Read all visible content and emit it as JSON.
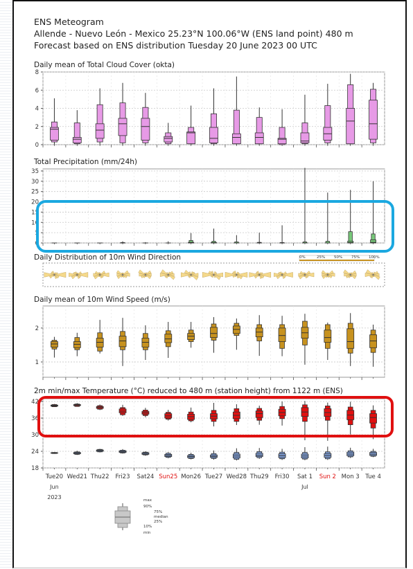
{
  "header": {
    "title": "ENS Meteogram",
    "location": "Allende - Nuevo León - Mexico 25.23°N 100.06°W (ENS land point) 480 m",
    "forecast": "Forecast based on ENS distribution Tuesday 20 June 2023 00 UTC"
  },
  "colors": {
    "cloud": "#e79ae6",
    "precip": "#78c87a",
    "wind_dir": "#f5d98b",
    "wind_speed": "#c7921f",
    "tmax": "#e01010",
    "tmin": "#7f9fd9",
    "highlight_blue": "#1ba8e0",
    "highlight_red": "#e01010"
  },
  "x_axis": {
    "days": [
      "Tue20",
      "Wed21",
      "Thu22",
      "Fri23",
      "Sat24",
      "Sun25",
      "Mon26",
      "Tue27",
      "Wed28",
      "Thu29",
      "Fri30",
      "Sat 1",
      "Sun 2",
      "Mon 3",
      "Tue 4"
    ],
    "red_days": [
      "Sun25",
      "Sun 2"
    ],
    "month_labels": [
      {
        "day_index": 0,
        "text": "Jun"
      },
      {
        "day_index": 11,
        "text": "Jul"
      }
    ],
    "year_label": "2023"
  },
  "chart_data": [
    {
      "type": "boxplot",
      "id": "cloud",
      "title": "Daily mean of Total Cloud Cover (okta)",
      "ylim": [
        0,
        8
      ],
      "yticks": [
        0,
        2,
        4,
        6,
        8
      ],
      "boxes": [
        {
          "min": 0.0,
          "p10": 0.3,
          "p25": 0.5,
          "median": 1.7,
          "p75": 1.9,
          "p90": 2.5,
          "max": 5.1
        },
        {
          "min": 0.0,
          "p10": 0.1,
          "p25": 0.2,
          "median": 0.6,
          "p75": 0.8,
          "p90": 2.4,
          "max": 3.8
        },
        {
          "min": 0.0,
          "p10": 0.3,
          "p25": 0.7,
          "median": 1.6,
          "p75": 2.3,
          "p90": 4.4,
          "max": 6.2
        },
        {
          "min": 0.0,
          "p10": 0.2,
          "p25": 1.0,
          "median": 2.3,
          "p75": 2.9,
          "p90": 4.6,
          "max": 6.8
        },
        {
          "min": 0.0,
          "p10": 0.2,
          "p25": 0.5,
          "median": 2.0,
          "p75": 2.9,
          "p90": 4.1,
          "max": 5.7
        },
        {
          "min": 0.0,
          "p10": 0.1,
          "p25": 0.3,
          "median": 0.7,
          "p75": 0.9,
          "p90": 1.3,
          "max": 2.4
        },
        {
          "min": 0.0,
          "p10": 0.1,
          "p25": 0.1,
          "median": 1.3,
          "p75": 1.4,
          "p90": 1.9,
          "max": 4.3
        },
        {
          "min": 0.0,
          "p10": 0.1,
          "p25": 0.2,
          "median": 0.7,
          "p75": 1.9,
          "p90": 3.4,
          "max": 6.2
        },
        {
          "min": 0.0,
          "p10": 0.1,
          "p25": 0.1,
          "median": 0.8,
          "p75": 1.2,
          "p90": 3.8,
          "max": 7.5
        },
        {
          "min": 0.0,
          "p10": 0.1,
          "p25": 0.1,
          "median": 0.8,
          "p75": 1.3,
          "p90": 3.0,
          "max": 4.1
        },
        {
          "min": 0.0,
          "p10": 0.0,
          "p25": 0.1,
          "median": 0.6,
          "p75": 0.7,
          "p90": 1.9,
          "max": 3.9
        },
        {
          "min": 0.0,
          "p10": 0.1,
          "p25": 0.2,
          "median": 0.4,
          "p75": 1.3,
          "p90": 2.4,
          "max": 5.5
        },
        {
          "min": 0.0,
          "p10": 0.2,
          "p25": 0.5,
          "median": 1.2,
          "p75": 1.9,
          "p90": 4.3,
          "max": 6.7
        },
        {
          "min": 0.0,
          "p10": 0.1,
          "p25": 0.1,
          "median": 2.6,
          "p75": 4.0,
          "p90": 6.6,
          "max": 7.8
        },
        {
          "min": 0.0,
          "p10": 0.2,
          "p25": 0.6,
          "median": 2.3,
          "p75": 4.9,
          "p90": 6.1,
          "max": 6.8
        }
      ]
    },
    {
      "type": "boxplot",
      "id": "precip",
      "title": "Total Precipitation (mm/24h)",
      "ylim": [
        0,
        36
      ],
      "yticks": [
        0,
        5,
        10,
        15,
        20,
        25,
        30,
        35
      ],
      "boxes": [
        {
          "min": 0,
          "p10": 0,
          "p25": 0,
          "median": 0,
          "p75": 0,
          "p90": 0,
          "max": 0
        },
        {
          "min": 0,
          "p10": 0,
          "p25": 0,
          "median": 0,
          "p75": 0,
          "p90": 0,
          "max": 0
        },
        {
          "min": 0,
          "p10": 0,
          "p25": 0,
          "median": 0,
          "p75": 0,
          "p90": 0,
          "max": 0.1
        },
        {
          "min": 0,
          "p10": 0,
          "p25": 0,
          "median": 0,
          "p75": 0,
          "p90": 0.2,
          "max": 0.8
        },
        {
          "min": 0,
          "p10": 0,
          "p25": 0,
          "median": 0,
          "p75": 0,
          "p90": 0,
          "max": 0.4
        },
        {
          "min": 0,
          "p10": 0,
          "p25": 0,
          "median": 0,
          "p75": 0,
          "p90": 0,
          "max": 0.8
        },
        {
          "min": 0,
          "p10": 0,
          "p25": 0,
          "median": 0,
          "p75": 0.3,
          "p90": 1.2,
          "max": 4.8
        },
        {
          "min": 0,
          "p10": 0,
          "p25": 0,
          "median": 0,
          "p75": 0.2,
          "p90": 0.8,
          "max": 7.0
        },
        {
          "min": 0,
          "p10": 0,
          "p25": 0,
          "median": 0,
          "p75": 0.1,
          "p90": 0.5,
          "max": 3.8
        },
        {
          "min": 0,
          "p10": 0,
          "p25": 0,
          "median": 0,
          "p75": 0,
          "p90": 0.3,
          "max": 5.0
        },
        {
          "min": 0,
          "p10": 0,
          "p25": 0,
          "median": 0,
          "p75": 0,
          "p90": 0.2,
          "max": 8.6
        },
        {
          "min": 0,
          "p10": 0,
          "p25": 0,
          "median": 0,
          "p75": 0,
          "p90": 0.5,
          "max": 36.5
        },
        {
          "min": 0,
          "p10": 0,
          "p25": 0,
          "median": 0,
          "p75": 0,
          "p90": 0.8,
          "max": 24.5
        },
        {
          "min": 0,
          "p10": 0,
          "p25": 0,
          "median": 0.2,
          "p75": 0.9,
          "p90": 5.5,
          "max": 25.8
        },
        {
          "min": 0,
          "p10": 0,
          "p25": 0,
          "median": 0.3,
          "p75": 1.5,
          "p90": 4.4,
          "max": 30.0
        }
      ]
    },
    {
      "type": "wind_direction_roses",
      "id": "wind_dir",
      "title": "Daily Distribution of 10m Wind Direction",
      "legend_labels": [
        "0%",
        "25%",
        "50%",
        "75%",
        "100%"
      ]
    },
    {
      "type": "boxplot",
      "id": "wind_speed",
      "title": "Daily mean of 10m Wind Speed (m/s)",
      "ylim": [
        0.55,
        2.65
      ],
      "yticks": [
        1,
        2
      ],
      "boxes": [
        {
          "min": 1.13,
          "p10": 1.38,
          "p25": 1.44,
          "median": 1.53,
          "p75": 1.6,
          "p90": 1.64,
          "max": 1.74
        },
        {
          "min": 1.17,
          "p10": 1.36,
          "p25": 1.42,
          "median": 1.52,
          "p75": 1.6,
          "p90": 1.72,
          "max": 1.86
        },
        {
          "min": 1.25,
          "p10": 1.32,
          "p25": 1.44,
          "median": 1.58,
          "p75": 1.7,
          "p90": 1.86,
          "max": 2.24
        },
        {
          "min": 0.88,
          "p10": 1.36,
          "p25": 1.45,
          "median": 1.62,
          "p75": 1.76,
          "p90": 1.9,
          "max": 2.3
        },
        {
          "min": 1.06,
          "p10": 1.36,
          "p25": 1.44,
          "median": 1.58,
          "p75": 1.7,
          "p90": 1.84,
          "max": 2.08
        },
        {
          "min": 1.12,
          "p10": 1.45,
          "p25": 1.57,
          "median": 1.68,
          "p75": 1.82,
          "p90": 1.92,
          "max": 2.18
        },
        {
          "min": 1.42,
          "p10": 1.6,
          "p25": 1.66,
          "median": 1.76,
          "p75": 1.84,
          "p90": 1.94,
          "max": 2.18
        },
        {
          "min": 1.27,
          "p10": 1.64,
          "p25": 1.72,
          "median": 1.84,
          "p75": 2.02,
          "p90": 2.12,
          "max": 2.32
        },
        {
          "min": 1.36,
          "p10": 1.78,
          "p25": 1.84,
          "median": 1.96,
          "p75": 2.06,
          "p90": 2.14,
          "max": 2.28
        },
        {
          "min": 1.18,
          "p10": 1.62,
          "p25": 1.74,
          "median": 1.88,
          "p75": 2.0,
          "p90": 2.1,
          "max": 2.38
        },
        {
          "min": 1.17,
          "p10": 1.4,
          "p25": 1.6,
          "median": 1.78,
          "p75": 2.0,
          "p90": 2.1,
          "max": 2.36
        },
        {
          "min": 0.92,
          "p10": 1.5,
          "p25": 1.7,
          "median": 1.86,
          "p75": 2.02,
          "p90": 2.2,
          "max": 2.42
        },
        {
          "min": 1.06,
          "p10": 1.4,
          "p25": 1.58,
          "median": 1.72,
          "p75": 1.94,
          "p90": 2.1,
          "max": 2.16
        },
        {
          "min": 0.88,
          "p10": 1.26,
          "p25": 1.4,
          "median": 1.6,
          "p75": 1.98,
          "p90": 2.14,
          "max": 2.44
        },
        {
          "min": 0.86,
          "p10": 1.28,
          "p25": 1.42,
          "median": 1.62,
          "p75": 1.8,
          "p90": 1.94,
          "max": 2.1
        }
      ]
    },
    {
      "type": "boxplot_dual",
      "id": "temperature",
      "title": "2m min/max Temperature (°C) reduced to 480 m (station height) from 1122 m (ENS)",
      "ylim": [
        18,
        43
      ],
      "yticks": [
        18,
        24,
        30,
        36,
        42
      ],
      "tmax": [
        {
          "min": 40.0,
          "p10": 40.1,
          "p25": 40.3,
          "median": 40.5,
          "p75": 40.7,
          "p90": 40.9,
          "max": 41.1
        },
        {
          "min": 40.1,
          "p10": 40.2,
          "p25": 40.5,
          "median": 40.7,
          "p75": 40.9,
          "p90": 41.1,
          "max": 41.4
        },
        {
          "min": 38.9,
          "p10": 39.2,
          "p25": 39.5,
          "median": 39.9,
          "p75": 40.2,
          "p90": 40.5,
          "max": 40.9
        },
        {
          "min": 36.8,
          "p10": 37.2,
          "p25": 37.9,
          "median": 38.5,
          "p75": 39.3,
          "p90": 39.8,
          "max": 40.8
        },
        {
          "min": 36.3,
          "p10": 36.9,
          "p25": 37.4,
          "median": 37.9,
          "p75": 38.4,
          "p90": 38.9,
          "max": 39.7
        },
        {
          "min": 35.1,
          "p10": 35.6,
          "p25": 36.0,
          "median": 36.8,
          "p75": 37.6,
          "p90": 38.1,
          "max": 39.0
        },
        {
          "min": 34.5,
          "p10": 35.0,
          "p25": 35.5,
          "median": 36.5,
          "p75": 37.4,
          "p90": 38.2,
          "max": 39.8
        },
        {
          "min": 33.0,
          "p10": 34.8,
          "p25": 35.7,
          "median": 36.7,
          "p75": 37.6,
          "p90": 38.8,
          "max": 41.5
        },
        {
          "min": 33.5,
          "p10": 34.8,
          "p25": 35.8,
          "median": 37.0,
          "p75": 38.2,
          "p90": 39.4,
          "max": 41.0
        },
        {
          "min": 33.6,
          "p10": 35.2,
          "p25": 36.2,
          "median": 37.6,
          "p75": 38.6,
          "p90": 39.5,
          "max": 40.5
        },
        {
          "min": 33.3,
          "p10": 35.8,
          "p25": 36.8,
          "median": 38.0,
          "p75": 39.2,
          "p90": 40.2,
          "max": 42.0
        },
        {
          "min": 28.0,
          "p10": 34.8,
          "p25": 36.6,
          "median": 38.2,
          "p75": 39.8,
          "p90": 40.8,
          "max": 42.2
        },
        {
          "min": 27.8,
          "p10": 35.2,
          "p25": 36.6,
          "median": 38.0,
          "p75": 39.4,
          "p90": 40.4,
          "max": 41.6
        },
        {
          "min": 30.1,
          "p10": 33.6,
          "p25": 35.4,
          "median": 37.1,
          "p75": 38.8,
          "p90": 40.0,
          "max": 41.9
        },
        {
          "min": 28.4,
          "p10": 32.4,
          "p25": 34.2,
          "median": 36.2,
          "p75": 37.6,
          "p90": 38.8,
          "max": 40.6
        }
      ],
      "tmin": [
        {
          "min": 23.1,
          "p10": 23.2,
          "p25": 23.3,
          "median": 23.4,
          "p75": 23.5,
          "p90": 23.6,
          "max": 23.7
        },
        {
          "min": 22.7,
          "p10": 22.9,
          "p25": 23.1,
          "median": 23.3,
          "p75": 23.6,
          "p90": 23.8,
          "max": 24.2
        },
        {
          "min": 23.6,
          "p10": 23.8,
          "p25": 24.0,
          "median": 24.3,
          "p75": 24.5,
          "p90": 24.7,
          "max": 24.9
        },
        {
          "min": 23.2,
          "p10": 23.4,
          "p25": 23.6,
          "median": 23.9,
          "p75": 24.2,
          "p90": 24.4,
          "max": 24.8
        },
        {
          "min": 22.4,
          "p10": 22.7,
          "p25": 22.9,
          "median": 23.2,
          "p75": 23.5,
          "p90": 23.7,
          "max": 24.0
        },
        {
          "min": 21.5,
          "p10": 21.8,
          "p25": 22.1,
          "median": 22.5,
          "p75": 22.9,
          "p90": 23.3,
          "max": 23.7
        },
        {
          "min": 21.1,
          "p10": 21.4,
          "p25": 21.7,
          "median": 22.1,
          "p75": 22.5,
          "p90": 22.9,
          "max": 23.5
        },
        {
          "min": 21.0,
          "p10": 21.4,
          "p25": 21.8,
          "median": 22.2,
          "p75": 22.7,
          "p90": 23.2,
          "max": 24.3
        },
        {
          "min": 20.7,
          "p10": 21.1,
          "p25": 21.6,
          "median": 22.3,
          "p75": 23.0,
          "p90": 23.6,
          "max": 25.1
        },
        {
          "min": 21.3,
          "p10": 21.7,
          "p25": 22.1,
          "median": 22.6,
          "p75": 23.3,
          "p90": 23.9,
          "max": 25.2
        },
        {
          "min": 20.9,
          "p10": 21.3,
          "p25": 21.7,
          "median": 22.4,
          "p75": 23.1,
          "p90": 23.7,
          "max": 24.9
        },
        {
          "min": 20.8,
          "p10": 21.2,
          "p25": 21.6,
          "median": 22.3,
          "p75": 23.0,
          "p90": 23.6,
          "max": 25.5
        },
        {
          "min": 20.9,
          "p10": 21.3,
          "p25": 21.8,
          "median": 22.5,
          "p75": 23.2,
          "p90": 23.8,
          "max": 25.7
        },
        {
          "min": 21.6,
          "p10": 22.0,
          "p25": 22.4,
          "median": 23.0,
          "p75": 23.7,
          "p90": 24.2,
          "max": 25.3
        },
        {
          "min": 21.9,
          "p10": 22.2,
          "p25": 22.5,
          "median": 23.0,
          "p75": 23.6,
          "p90": 24.0,
          "max": 24.9
        }
      ]
    }
  ],
  "box_legend": {
    "labels": [
      "max",
      "90%",
      "75%",
      "median",
      "25%",
      "10%",
      "min"
    ]
  }
}
